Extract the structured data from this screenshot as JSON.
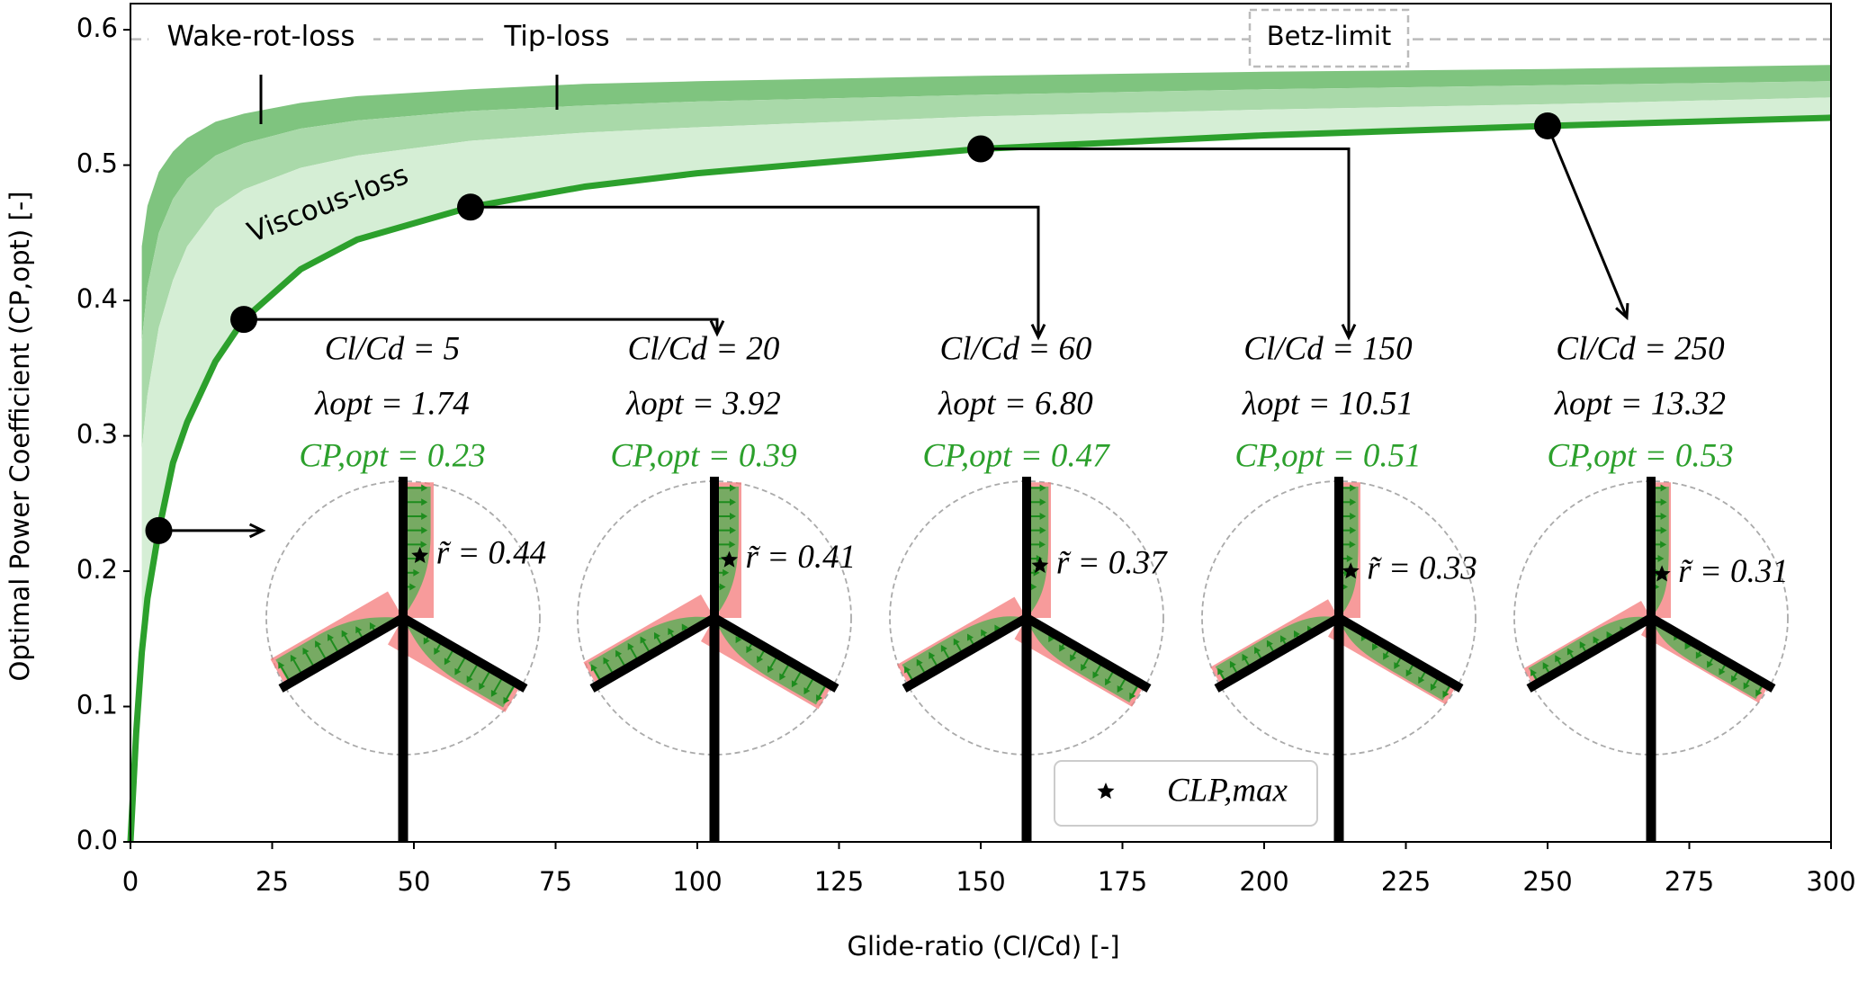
{
  "chart_data": {
    "type": "line",
    "xlabel": "Glide-ratio (Cl/Cd) [-]",
    "ylabel": "Optimal Power Coefficient (CP,opt) [-]",
    "xlim": [
      0,
      300
    ],
    "ylim": [
      0,
      0.62
    ],
    "xticks": [
      0,
      25,
      50,
      75,
      100,
      125,
      150,
      175,
      200,
      225,
      250,
      275,
      300
    ],
    "yticks": [
      {
        "value": 0,
        "label": "0.0"
      },
      0.1,
      0.2,
      0.3,
      0.4,
      0.5,
      0.6
    ],
    "x": [
      0,
      1,
      2,
      3,
      5,
      7.5,
      10,
      15,
      20,
      30,
      40,
      60,
      80,
      100,
      150,
      200,
      250,
      300
    ],
    "series": [
      {
        "color": "#7fc47f",
        "draw": "band",
        "values": [
          null,
          null,
          0.44,
          0.47,
          0.495,
          0.51,
          0.52,
          0.532,
          0.538,
          0.546,
          0.551,
          0.556,
          0.56,
          0.562,
          0.566,
          0.569,
          0.571,
          0.574
        ]
      },
      {
        "color": "#a9d9a9",
        "draw": "band",
        "values": [
          null,
          null,
          0.37,
          0.41,
          0.45,
          0.475,
          0.49,
          0.507,
          0.516,
          0.527,
          0.533,
          0.54,
          0.544,
          0.547,
          0.552,
          0.556,
          0.559,
          0.562
        ]
      },
      {
        "color": "#d5eed5",
        "draw": "band",
        "values": [
          null,
          null,
          0.29,
          0.33,
          0.38,
          0.415,
          0.44,
          0.468,
          0.482,
          0.498,
          0.507,
          0.518,
          0.524,
          0.528,
          0.536,
          0.541,
          0.545,
          0.55
        ]
      },
      {
        "color": "#2ca02c",
        "draw": "line",
        "values": [
          0,
          0.08,
          0.14,
          0.18,
          0.23,
          0.28,
          0.31,
          0.355,
          0.386,
          0.423,
          0.445,
          0.469,
          0.484,
          0.494,
          0.512,
          0.522,
          0.529,
          0.535
        ]
      }
    ],
    "betz": {
      "label": "Betz-limit",
      "value": 0.593
    },
    "annotations": [
      "Wake-rot-loss",
      "Tip-loss",
      "Viscous-loss"
    ],
    "cases": [
      {
        "x": 5,
        "y": 0.23,
        "ratio_label": "Cl/Cd = 5",
        "lambda_label": "λopt = 1.74",
        "cp_label": "CP,opt = 0.23",
        "r": 0.44,
        "r_label": "r̃ = 0.44"
      },
      {
        "x": 20,
        "y": 0.386,
        "ratio_label": "Cl/Cd = 20",
        "lambda_label": "λopt = 3.92",
        "cp_label": "CP,opt = 0.39",
        "r": 0.41,
        "r_label": "r̃ = 0.41"
      },
      {
        "x": 60,
        "y": 0.469,
        "ratio_label": "Cl/Cd = 60",
        "lambda_label": "λopt = 6.80",
        "cp_label": "CP,opt = 0.47",
        "r": 0.37,
        "r_label": "r̃ = 0.37"
      },
      {
        "x": 150,
        "y": 0.512,
        "ratio_label": "Cl/Cd = 150",
        "lambda_label": "λopt = 10.51",
        "cp_label": "CP,opt = 0.51",
        "r": 0.33,
        "r_label": "r̃ = 0.33"
      },
      {
        "x": 250,
        "y": 0.529,
        "ratio_label": "Cl/Cd = 250",
        "lambda_label": "λopt = 13.32",
        "cp_label": "CP,opt = 0.53",
        "r": 0.31,
        "r_label": "r̃ = 0.31"
      }
    ],
    "legend": {
      "label": "CLP,max",
      "marker": "star",
      "position": "lower center"
    }
  }
}
